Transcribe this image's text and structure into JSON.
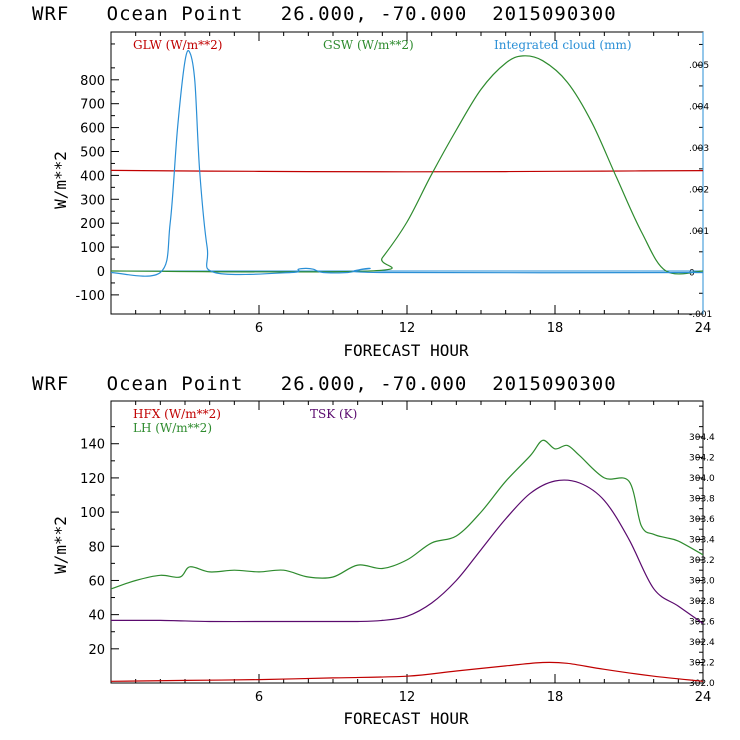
{
  "chart_data": [
    {
      "type": "line",
      "title": "WRF   Ocean Point   26.000, -70.000  2015090300",
      "xlabel": "FORECAST HOUR",
      "ylabel": "W/m**2",
      "xlim": [
        0,
        24
      ],
      "ylim": [
        -180,
        1000
      ],
      "xticks": [
        "6",
        "12",
        "18",
        "24"
      ],
      "yticks": [
        "-100",
        "0",
        "100",
        "200",
        "300",
        "400",
        "500",
        "600",
        "700",
        "800"
      ],
      "y2lim": [
        -0.001,
        0.0058
      ],
      "y2ticks": [
        "-.001",
        "0",
        ".001",
        ".002",
        ".003",
        ".004",
        ".005"
      ],
      "series": [
        {
          "name": "GLW (W/m**2)",
          "color": "#c00000",
          "axis": "left",
          "x": [
            0,
            4,
            8,
            12,
            16,
            20,
            24
          ],
          "values": [
            421,
            418,
            416,
            415,
            416,
            418,
            420
          ]
        },
        {
          "name": "GSW (W/m**2)",
          "color": "#2e8b2e",
          "axis": "left",
          "x": [
            0,
            10.5,
            11,
            12,
            13,
            14,
            15,
            16,
            16.7,
            17.5,
            18.5,
            19.5,
            20.5,
            21.5,
            22.5,
            24
          ],
          "values": [
            0,
            0,
            55,
            205,
            405,
            590,
            760,
            870,
            900,
            880,
            790,
            620,
            390,
            165,
            0,
            0
          ]
        },
        {
          "name": "Integrated cloud (mm)",
          "color": "#2a8fd6",
          "axis": "right",
          "x": [
            0,
            2.0,
            2.4,
            2.7,
            3.0,
            3.2,
            3.4,
            3.6,
            3.9,
            4.2,
            7.3,
            7.6,
            7.9,
            8.2,
            8.6,
            9.6,
            10.1,
            10.5,
            10.9,
            24
          ],
          "values": [
            0,
            0,
            0.0012,
            0.0035,
            0.0051,
            0.0053,
            0.0046,
            0.0024,
            0.0006,
            0,
            0,
            8e-05,
            0.0001,
            8e-05,
            0,
            0,
            7e-05,
            0.0001,
            0,
            0
          ]
        }
      ]
    },
    {
      "type": "line",
      "title": "WRF   Ocean Point   26.000, -70.000  2015090300",
      "xlabel": "FORECAST HOUR",
      "ylabel": "W/m**2",
      "xlim": [
        0,
        24
      ],
      "ylim": [
        0,
        165
      ],
      "xticks": [
        "6",
        "12",
        "18",
        "24"
      ],
      "yticks": [
        "20",
        "40",
        "60",
        "80",
        "100",
        "120",
        "140"
      ],
      "y2lim": [
        302.0,
        304.75
      ],
      "y2ticks": [
        "302.0",
        "302.2",
        "302.4",
        "302.6",
        "302.8",
        "303.0",
        "303.2",
        "303.4",
        "303.6",
        "303.8",
        "304.0",
        "304.2",
        "304.4"
      ],
      "series": [
        {
          "name": "HFX (W/m**2)",
          "color": "#c00000",
          "axis": "left",
          "x": [
            0,
            3,
            6,
            9,
            12,
            14,
            16,
            17.5,
            18.5,
            20,
            22,
            24
          ],
          "values": [
            1,
            1.5,
            2,
            3,
            4,
            7,
            10,
            12,
            11.5,
            8,
            4,
            1
          ]
        },
        {
          "name": "LH (W/m**2)",
          "color": "#2e8b2e",
          "axis": "left",
          "x": [
            0,
            1,
            2,
            2.8,
            3.2,
            4,
            5,
            6,
            7,
            8,
            9,
            10,
            11,
            12,
            13,
            14,
            15,
            16,
            17,
            17.5,
            18,
            18.5,
            19,
            20,
            21,
            21.5,
            22,
            22.5,
            23,
            24
          ],
          "values": [
            55,
            60,
            63,
            62,
            68,
            65,
            66,
            65,
            66,
            62,
            62,
            69,
            67,
            72,
            82,
            86,
            100,
            118,
            133,
            142,
            137,
            139,
            133,
            120,
            118,
            92,
            87,
            85,
            83,
            75
          ]
        },
        {
          "name": "TSK (K)",
          "color": "#5a0a6e",
          "axis": "right",
          "x": [
            0,
            2,
            4,
            6,
            8,
            10,
            11,
            12,
            13,
            14,
            15,
            16,
            17,
            18,
            19,
            20,
            21,
            22,
            23,
            24
          ],
          "values": [
            302.61,
            302.61,
            302.6,
            302.6,
            302.6,
            302.6,
            302.61,
            302.65,
            302.78,
            303.0,
            303.3,
            303.6,
            303.85,
            303.97,
            303.95,
            303.78,
            303.4,
            302.92,
            302.75,
            302.58
          ]
        }
      ]
    }
  ]
}
